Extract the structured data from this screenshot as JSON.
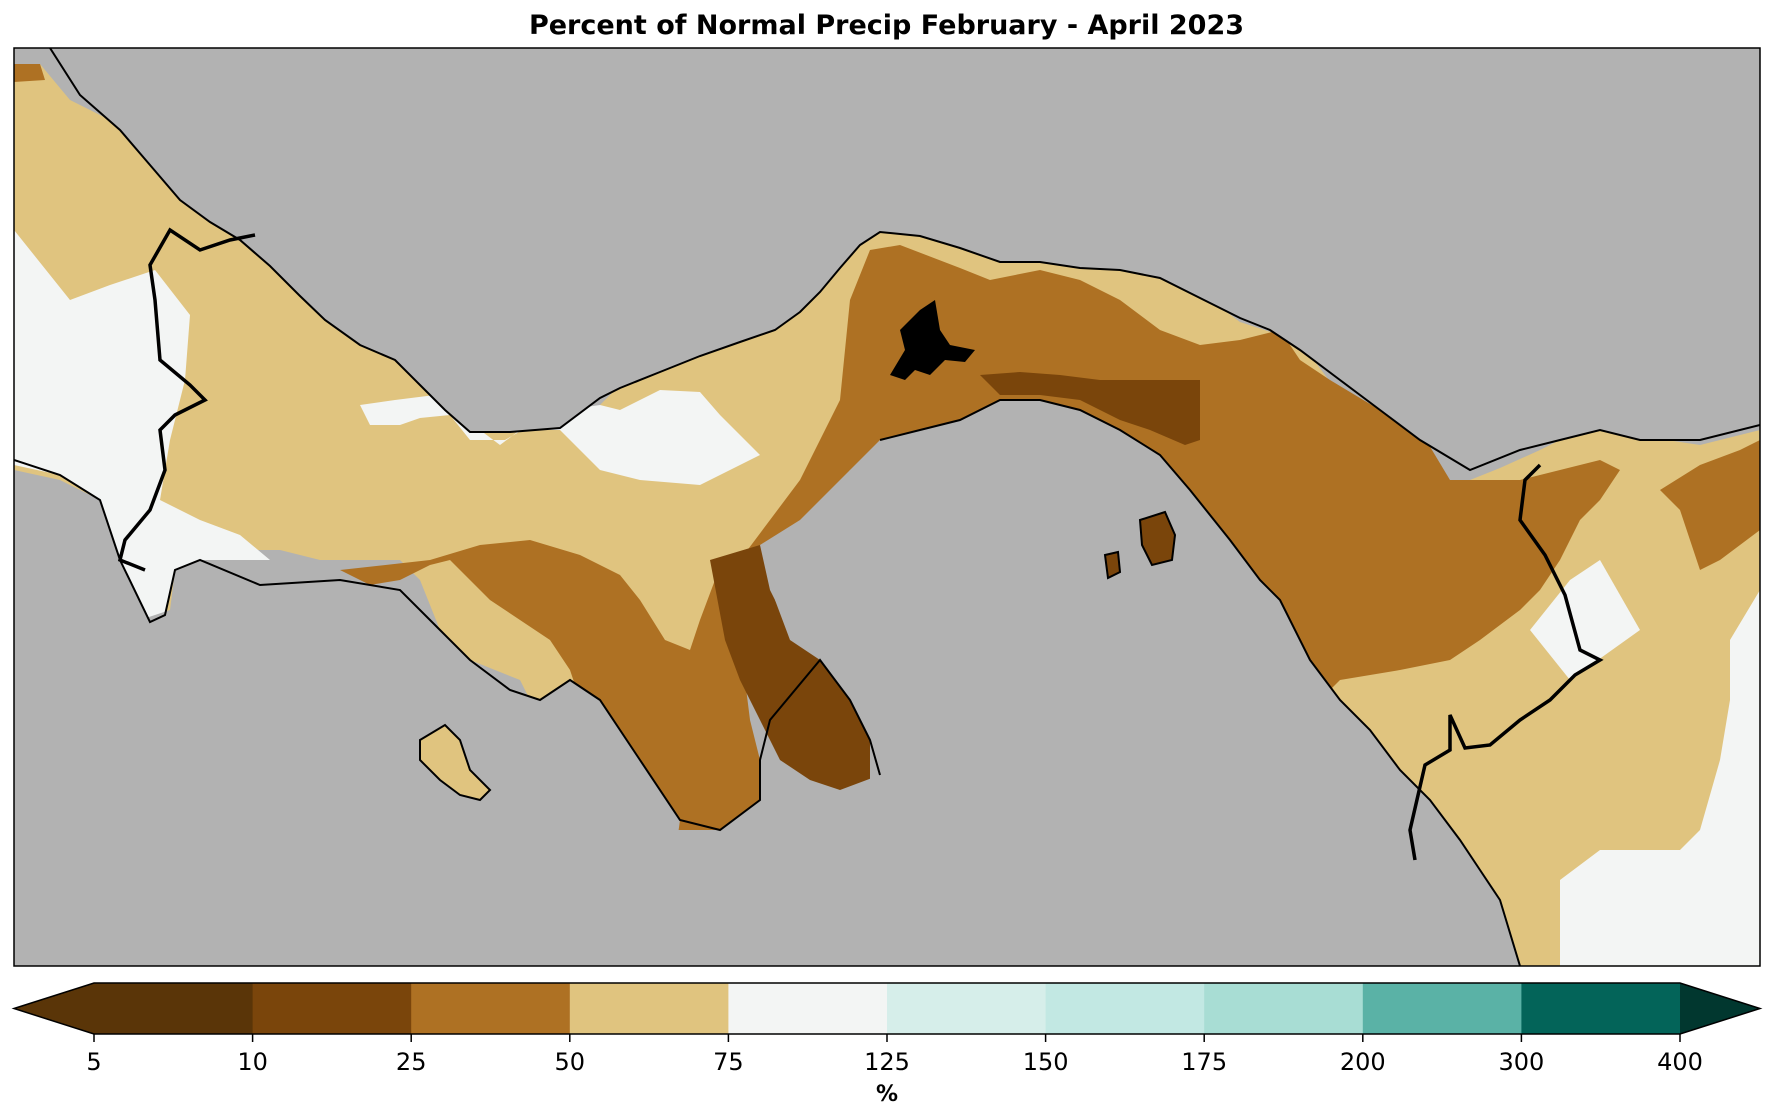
{
  "title": "Percent of Normal Precip February - April 2023",
  "colors": {
    "ocean": "#b2b2b2",
    "c_lt10": "#5a3508",
    "c_10_25": "#7a450b",
    "c_25_50": "#ae7123",
    "c_50_75": "#e0c47f",
    "c_75_125": "#f3f5f4",
    "c_125_150": "#d6eeea",
    "c_150_175": "#c2e8e3",
    "c_175_200": "#a8ddd4",
    "c_200_300": "#5ab2a6",
    "c_300_400": "#036459",
    "c_gt400": "#01372f",
    "lake": "#000000",
    "coast": "#000000"
  },
  "colorbar": {
    "label": "%",
    "ticks": [
      "5",
      "10",
      "25",
      "50",
      "75",
      "125",
      "150",
      "175",
      "200",
      "300",
      "400"
    ],
    "extend": "both"
  }
}
